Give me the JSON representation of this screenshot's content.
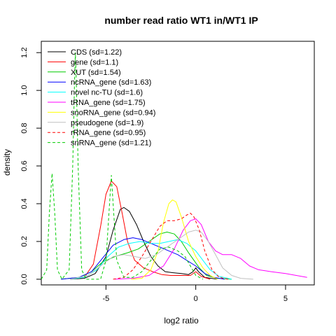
{
  "chart_data": {
    "type": "line",
    "title": "number read ratio WT1 in/WT1 IP",
    "xlabel": "log2 ratio",
    "ylabel": "density",
    "xlim": [
      -8.6,
      6.6
    ],
    "ylim": [
      -0.03,
      1.26
    ],
    "xticks": [
      -5,
      0,
      5
    ],
    "yticks": [
      0.0,
      0.2,
      0.4,
      0.6,
      0.8,
      1.0,
      1.2
    ],
    "xtick_labels": [
      "-5",
      "0",
      "5"
    ],
    "ytick_labels": [
      "0.0",
      "0.2",
      "0.4",
      "0.6",
      "0.8",
      "1.0",
      "1.2"
    ],
    "grid": false,
    "legend_position": "top-left",
    "series": [
      {
        "name": "CDS (sd=1.22)",
        "color": "#000000",
        "dash": false,
        "points": [
          [
            -7.0,
            0
          ],
          [
            -6.2,
            0.005
          ],
          [
            -5.6,
            0.03
          ],
          [
            -5.0,
            0.12
          ],
          [
            -4.6,
            0.26
          ],
          [
            -4.2,
            0.37
          ],
          [
            -4.0,
            0.38
          ],
          [
            -3.7,
            0.36
          ],
          [
            -3.3,
            0.29
          ],
          [
            -2.9,
            0.2
          ],
          [
            -2.5,
            0.12
          ],
          [
            -2.1,
            0.07
          ],
          [
            -1.7,
            0.04
          ],
          [
            -1.3,
            0.035
          ],
          [
            -0.8,
            0.03
          ],
          [
            -0.4,
            0.025
          ],
          [
            -0.15,
            0.04
          ],
          [
            0.0,
            0.06
          ],
          [
            0.15,
            0.04
          ],
          [
            0.5,
            0.01
          ],
          [
            1.2,
            0.0
          ]
        ]
      },
      {
        "name": "gene (sd=1.1)",
        "color": "#ff0000",
        "dash": false,
        "points": [
          [
            -7.0,
            0
          ],
          [
            -6.2,
            0.01
          ],
          [
            -5.7,
            0.08
          ],
          [
            -5.3,
            0.28
          ],
          [
            -5.0,
            0.45
          ],
          [
            -4.7,
            0.52
          ],
          [
            -4.4,
            0.49
          ],
          [
            -4.1,
            0.35
          ],
          [
            -3.8,
            0.2
          ],
          [
            -3.4,
            0.1
          ],
          [
            -2.9,
            0.06
          ],
          [
            -2.4,
            0.04
          ],
          [
            -1.9,
            0.025
          ],
          [
            -1.4,
            0.02
          ],
          [
            -0.8,
            0.02
          ],
          [
            -0.3,
            0.02
          ],
          [
            0.0,
            0.04
          ],
          [
            0.3,
            0.015
          ],
          [
            0.8,
            0.0
          ]
        ]
      },
      {
        "name": "XUT (sd=1.54)",
        "color": "#00cc00",
        "dash": false,
        "points": [
          [
            -7.5,
            0
          ],
          [
            -6.5,
            0.01
          ],
          [
            -5.8,
            0.04
          ],
          [
            -5.2,
            0.09
          ],
          [
            -4.5,
            0.12
          ],
          [
            -3.8,
            0.14
          ],
          [
            -3.2,
            0.16
          ],
          [
            -2.6,
            0.2
          ],
          [
            -2.0,
            0.24
          ],
          [
            -1.6,
            0.25
          ],
          [
            -1.2,
            0.24
          ],
          [
            -0.8,
            0.2
          ],
          [
            -0.4,
            0.14
          ],
          [
            -0.1,
            0.1
          ],
          [
            0.2,
            0.06
          ],
          [
            0.6,
            0.02
          ],
          [
            1.2,
            0.005
          ],
          [
            2.0,
            0.0
          ]
        ]
      },
      {
        "name": "ncRNA_gene (sd=1.63)",
        "color": "#0000ff",
        "dash": false,
        "points": [
          [
            -7.5,
            0
          ],
          [
            -6.5,
            0.01
          ],
          [
            -5.8,
            0.04
          ],
          [
            -5.2,
            0.11
          ],
          [
            -4.6,
            0.18
          ],
          [
            -4.0,
            0.21
          ],
          [
            -3.5,
            0.22
          ],
          [
            -3.0,
            0.21
          ],
          [
            -2.5,
            0.19
          ],
          [
            -2.0,
            0.17
          ],
          [
            -1.5,
            0.15
          ],
          [
            -1.0,
            0.13
          ],
          [
            -0.5,
            0.1
          ],
          [
            0.0,
            0.07
          ],
          [
            0.5,
            0.03
          ],
          [
            1.0,
            0.01
          ],
          [
            1.6,
            0.0
          ]
        ]
      },
      {
        "name": "novel nc-TU (sd=1.6)",
        "color": "#00ffff",
        "dash": false,
        "points": [
          [
            -7.0,
            0
          ],
          [
            -6.2,
            0.01
          ],
          [
            -5.5,
            0.05
          ],
          [
            -4.9,
            0.12
          ],
          [
            -4.3,
            0.17
          ],
          [
            -3.7,
            0.19
          ],
          [
            -3.1,
            0.2
          ],
          [
            -2.5,
            0.19
          ],
          [
            -2.0,
            0.19
          ],
          [
            -1.5,
            0.2
          ],
          [
            -1.0,
            0.21
          ],
          [
            -0.5,
            0.19
          ],
          [
            0.0,
            0.15
          ],
          [
            0.4,
            0.1
          ],
          [
            0.8,
            0.05
          ],
          [
            1.3,
            0.015
          ],
          [
            2.0,
            0.0
          ]
        ]
      },
      {
        "name": "tRNA_gene (sd=1.75)",
        "color": "#ff00ff",
        "dash": false,
        "points": [
          [
            -4.5,
            0
          ],
          [
            -3.5,
            0.005
          ],
          [
            -2.6,
            0.02
          ],
          [
            -1.8,
            0.07
          ],
          [
            -1.2,
            0.16
          ],
          [
            -0.7,
            0.26
          ],
          [
            -0.3,
            0.31
          ],
          [
            0.0,
            0.32
          ],
          [
            0.3,
            0.29
          ],
          [
            0.7,
            0.2
          ],
          [
            1.1,
            0.15
          ],
          [
            1.5,
            0.13
          ],
          [
            2.0,
            0.13
          ],
          [
            2.5,
            0.11
          ],
          [
            3.0,
            0.07
          ],
          [
            3.5,
            0.05
          ],
          [
            4.2,
            0.04
          ],
          [
            5.0,
            0.03
          ],
          [
            5.6,
            0.02
          ],
          [
            6.2,
            0.01
          ]
        ]
      },
      {
        "name": "snoRNA_gene (sd=0.94)",
        "color": "#ffff00",
        "dash": false,
        "points": [
          [
            -3.6,
            0
          ],
          [
            -3.0,
            0.005
          ],
          [
            -2.5,
            0.05
          ],
          [
            -2.1,
            0.15
          ],
          [
            -1.8,
            0.3
          ],
          [
            -1.5,
            0.4
          ],
          [
            -1.3,
            0.42
          ],
          [
            -1.1,
            0.41
          ],
          [
            -0.8,
            0.33
          ],
          [
            -0.4,
            0.2
          ],
          [
            0.0,
            0.12
          ],
          [
            0.4,
            0.06
          ],
          [
            0.8,
            0.02
          ],
          [
            1.2,
            0.0
          ]
        ]
      },
      {
        "name": "pseudogene (sd=1.9)",
        "color": "#c0c0c0",
        "dash": false,
        "points": [
          [
            -7.0,
            0
          ],
          [
            -6.0,
            0.02
          ],
          [
            -5.3,
            0.07
          ],
          [
            -4.6,
            0.12
          ],
          [
            -4.0,
            0.13
          ],
          [
            -3.4,
            0.12
          ],
          [
            -2.8,
            0.11
          ],
          [
            -2.2,
            0.13
          ],
          [
            -1.6,
            0.17
          ],
          [
            -1.0,
            0.21
          ],
          [
            -0.4,
            0.25
          ],
          [
            0.0,
            0.26
          ],
          [
            0.3,
            0.25
          ],
          [
            0.7,
            0.2
          ],
          [
            1.1,
            0.13
          ],
          [
            1.5,
            0.06
          ],
          [
            2.0,
            0.02
          ],
          [
            2.5,
            0.005
          ],
          [
            3.2,
            0.0
          ]
        ]
      },
      {
        "name": "rRNA_gene (sd=0.95)",
        "color": "#ff0000",
        "dash": true,
        "points": [
          [
            -4.6,
            0
          ],
          [
            -4.0,
            0.01
          ],
          [
            -3.5,
            0.05
          ],
          [
            -3.0,
            0.12
          ],
          [
            -2.5,
            0.2
          ],
          [
            -2.0,
            0.28
          ],
          [
            -1.6,
            0.31
          ],
          [
            -1.2,
            0.31
          ],
          [
            -0.8,
            0.32
          ],
          [
            -0.5,
            0.34
          ],
          [
            -0.3,
            0.35
          ],
          [
            -0.1,
            0.33
          ],
          [
            0.2,
            0.26
          ],
          [
            0.5,
            0.15
          ],
          [
            0.9,
            0.05
          ],
          [
            1.3,
            0.01
          ],
          [
            1.8,
            0.0
          ]
        ]
      },
      {
        "name": "snRNA_gene (sd=1.21)",
        "color": "#00cc00",
        "dash": true,
        "points": [
          [
            -8.6,
            0
          ],
          [
            -8.3,
            0.05
          ],
          [
            -8.15,
            0.35
          ],
          [
            -8.0,
            0.56
          ],
          [
            -7.85,
            0.35
          ],
          [
            -7.7,
            0.05
          ],
          [
            -7.45,
            0.0
          ],
          [
            -7.05,
            0.05
          ],
          [
            -6.85,
            0.6
          ],
          [
            -6.75,
            1.05
          ],
          [
            -6.7,
            1.2
          ],
          [
            -6.65,
            1.05
          ],
          [
            -6.55,
            0.6
          ],
          [
            -6.35,
            0.05
          ],
          [
            -6.1,
            0.0
          ],
          [
            -5.3,
            0.0
          ],
          [
            -5.0,
            0.1
          ],
          [
            -4.8,
            0.4
          ],
          [
            -4.7,
            0.55
          ],
          [
            -4.6,
            0.4
          ],
          [
            -4.4,
            0.1
          ],
          [
            -4.0,
            0.01
          ],
          [
            -3.5,
            0.01
          ],
          [
            -3.0,
            0.04
          ],
          [
            -2.5,
            0.1
          ],
          [
            -2.0,
            0.16
          ],
          [
            -1.5,
            0.17
          ],
          [
            -1.0,
            0.15
          ],
          [
            -0.6,
            0.12
          ],
          [
            -0.3,
            0.07
          ],
          [
            0.0,
            0.02
          ],
          [
            0.4,
            0.0
          ]
        ]
      }
    ]
  }
}
